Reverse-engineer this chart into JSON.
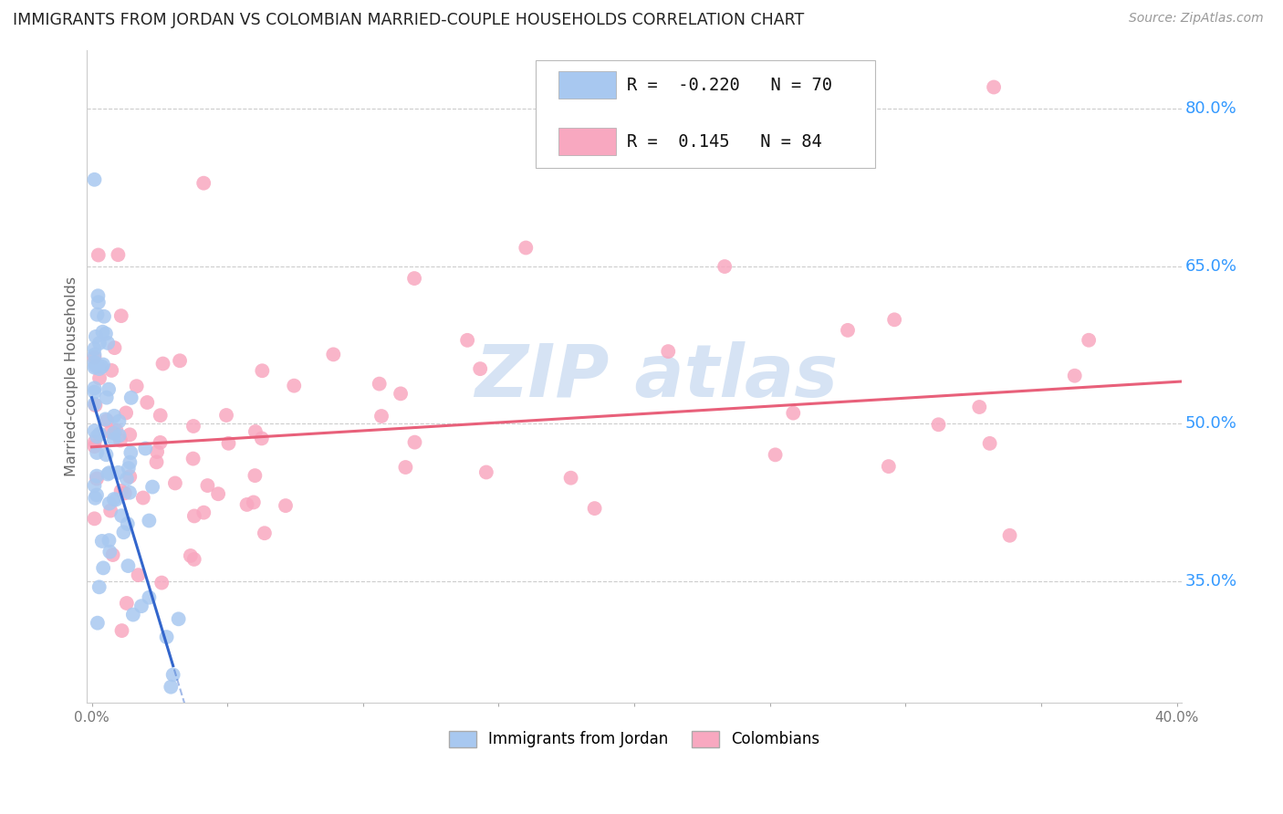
{
  "title": "IMMIGRANTS FROM JORDAN VS COLOMBIAN MARRIED-COUPLE HOUSEHOLDS CORRELATION CHART",
  "source": "Source: ZipAtlas.com",
  "ylabel": "Married-couple Households",
  "right_yticks": [
    "80.0%",
    "65.0%",
    "50.0%",
    "35.0%"
  ],
  "right_ytick_vals": [
    0.8,
    0.65,
    0.5,
    0.35
  ],
  "xlim": [
    0.0,
    0.4
  ],
  "ylim": [
    0.235,
    0.855
  ],
  "jordan_R": -0.22,
  "jordan_N": 70,
  "colombian_R": 0.145,
  "colombian_N": 84,
  "jordan_color": "#a8c8f0",
  "colombian_color": "#f8a8c0",
  "jordan_line_color": "#3366cc",
  "colombian_line_color": "#e8607a",
  "watermark_text": "ZIP atlas",
  "watermark_color": "#c5d8f0",
  "legend_jordan_label": "Immigrants from Jordan",
  "legend_colombian_label": "Colombians",
  "jordan_trend_intercept": 0.525,
  "jordan_trend_slope": -8.5,
  "colombian_trend_intercept": 0.478,
  "colombian_trend_slope": 0.155
}
